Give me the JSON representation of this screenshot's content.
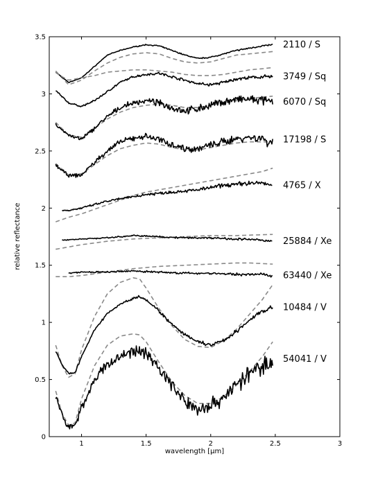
{
  "chart_data": {
    "type": "line",
    "title": "",
    "xlabel": "wavelength [μm]",
    "ylabel": "relative reflectance",
    "xlim": [
      0.75,
      3.0
    ],
    "ylim": [
      0,
      3.5
    ],
    "xticks": [
      1,
      1.5,
      2,
      2.5,
      3
    ],
    "xtick_labels": [
      "1",
      "1.5",
      "2",
      "2.5",
      "3"
    ],
    "yticks": [
      0,
      0.5,
      1,
      1.5,
      2,
      2.5,
      3,
      3.5
    ],
    "ytick_labels": [
      "0",
      "0.5",
      "1",
      "1.5",
      "2",
      "2.5",
      "3",
      "3.5"
    ],
    "grid": false,
    "line_styles": {
      "measured": {
        "color": "#000000",
        "dash": "solid"
      },
      "model": {
        "color": "#888888",
        "dash": "dashed"
      }
    },
    "series": [
      {
        "label": "2110 / S",
        "measured": [
          [
            0.8,
            3.19
          ],
          [
            0.9,
            3.1
          ],
          [
            1.0,
            3.14
          ],
          [
            1.1,
            3.24
          ],
          [
            1.2,
            3.34
          ],
          [
            1.3,
            3.38
          ],
          [
            1.4,
            3.41
          ],
          [
            1.5,
            3.43
          ],
          [
            1.6,
            3.42
          ],
          [
            1.7,
            3.38
          ],
          [
            1.8,
            3.34
          ],
          [
            1.9,
            3.31
          ],
          [
            2.0,
            3.32
          ],
          [
            2.1,
            3.35
          ],
          [
            2.2,
            3.38
          ],
          [
            2.3,
            3.4
          ],
          [
            2.4,
            3.42
          ],
          [
            2.48,
            3.43
          ]
        ],
        "model": [
          [
            0.8,
            3.2
          ],
          [
            0.9,
            3.08
          ],
          [
            1.0,
            3.12
          ],
          [
            1.1,
            3.2
          ],
          [
            1.2,
            3.27
          ],
          [
            1.3,
            3.32
          ],
          [
            1.4,
            3.35
          ],
          [
            1.5,
            3.36
          ],
          [
            1.6,
            3.35
          ],
          [
            1.7,
            3.31
          ],
          [
            1.8,
            3.28
          ],
          [
            1.9,
            3.27
          ],
          [
            2.0,
            3.28
          ],
          [
            2.1,
            3.31
          ],
          [
            2.2,
            3.34
          ],
          [
            2.3,
            3.35
          ],
          [
            2.48,
            3.37
          ]
        ],
        "noise": 0.005
      },
      {
        "label": "3749 / Sq",
        "measured": [
          [
            0.8,
            3.03
          ],
          [
            0.9,
            2.92
          ],
          [
            1.0,
            2.89
          ],
          [
            1.1,
            2.94
          ],
          [
            1.2,
            3.02
          ],
          [
            1.3,
            3.1
          ],
          [
            1.4,
            3.15
          ],
          [
            1.5,
            3.17
          ],
          [
            1.6,
            3.18
          ],
          [
            1.7,
            3.15
          ],
          [
            1.8,
            3.12
          ],
          [
            1.9,
            3.09
          ],
          [
            2.0,
            3.08
          ],
          [
            2.1,
            3.1
          ],
          [
            2.2,
            3.13
          ],
          [
            2.3,
            3.14
          ],
          [
            2.4,
            3.15
          ],
          [
            2.48,
            3.15
          ]
        ],
        "model": [
          [
            0.8,
            3.19
          ],
          [
            0.85,
            3.15
          ],
          [
            0.9,
            3.12
          ],
          [
            1.0,
            3.14
          ],
          [
            1.1,
            3.16
          ],
          [
            1.2,
            3.19
          ],
          [
            1.3,
            3.2
          ],
          [
            1.4,
            3.21
          ],
          [
            1.5,
            3.21
          ],
          [
            1.6,
            3.2
          ],
          [
            1.7,
            3.19
          ],
          [
            1.8,
            3.17
          ],
          [
            1.9,
            3.16
          ],
          [
            2.0,
            3.16
          ],
          [
            2.1,
            3.17
          ],
          [
            2.2,
            3.19
          ],
          [
            2.3,
            3.21
          ],
          [
            2.4,
            3.22
          ],
          [
            2.48,
            3.23
          ]
        ],
        "noise": 0.012
      },
      {
        "label": "6070 / Sq",
        "measured": [
          [
            0.8,
            2.73
          ],
          [
            0.9,
            2.64
          ],
          [
            1.0,
            2.6
          ],
          [
            1.1,
            2.7
          ],
          [
            1.2,
            2.8
          ],
          [
            1.3,
            2.88
          ],
          [
            1.4,
            2.92
          ],
          [
            1.5,
            2.94
          ],
          [
            1.6,
            2.92
          ],
          [
            1.7,
            2.88
          ],
          [
            1.8,
            2.85
          ],
          [
            1.9,
            2.87
          ],
          [
            2.0,
            2.9
          ],
          [
            2.1,
            2.93
          ],
          [
            2.2,
            2.95
          ],
          [
            2.3,
            2.95
          ],
          [
            2.4,
            2.94
          ],
          [
            2.48,
            2.93
          ]
        ],
        "model": [
          [
            0.8,
            2.75
          ],
          [
            0.9,
            2.64
          ],
          [
            1.0,
            2.62
          ],
          [
            1.1,
            2.7
          ],
          [
            1.2,
            2.78
          ],
          [
            1.3,
            2.84
          ],
          [
            1.4,
            2.88
          ],
          [
            1.5,
            2.9
          ],
          [
            1.6,
            2.91
          ],
          [
            1.7,
            2.9
          ],
          [
            1.8,
            2.88
          ],
          [
            1.9,
            2.88
          ],
          [
            2.0,
            2.9
          ],
          [
            2.1,
            2.92
          ],
          [
            2.2,
            2.94
          ],
          [
            2.3,
            2.96
          ],
          [
            2.48,
            2.98
          ]
        ],
        "noise": 0.03
      },
      {
        "label": "17198 / S",
        "measured": [
          [
            0.8,
            2.38
          ],
          [
            0.9,
            2.28
          ],
          [
            1.0,
            2.29
          ],
          [
            1.1,
            2.4
          ],
          [
            1.2,
            2.5
          ],
          [
            1.3,
            2.58
          ],
          [
            1.4,
            2.61
          ],
          [
            1.5,
            2.63
          ],
          [
            1.6,
            2.6
          ],
          [
            1.7,
            2.56
          ],
          [
            1.8,
            2.52
          ],
          [
            1.9,
            2.52
          ],
          [
            2.0,
            2.55
          ],
          [
            2.1,
            2.58
          ],
          [
            2.2,
            2.61
          ],
          [
            2.3,
            2.62
          ],
          [
            2.4,
            2.61
          ],
          [
            2.45,
            2.57
          ],
          [
            2.48,
            2.6
          ]
        ],
        "model": [
          [
            0.8,
            2.39
          ],
          [
            0.9,
            2.29
          ],
          [
            1.0,
            2.3
          ],
          [
            1.1,
            2.38
          ],
          [
            1.2,
            2.46
          ],
          [
            1.3,
            2.52
          ],
          [
            1.4,
            2.55
          ],
          [
            1.5,
            2.57
          ],
          [
            1.6,
            2.56
          ],
          [
            1.7,
            2.53
          ],
          [
            1.8,
            2.51
          ],
          [
            1.9,
            2.51
          ],
          [
            2.0,
            2.53
          ],
          [
            2.1,
            2.55
          ],
          [
            2.2,
            2.57
          ],
          [
            2.3,
            2.58
          ],
          [
            2.48,
            2.58
          ]
        ],
        "noise": 0.03
      },
      {
        "label": "4765 / X",
        "measured": [
          [
            0.85,
            1.98
          ],
          [
            0.9,
            1.98
          ],
          [
            1.0,
            2.0
          ],
          [
            1.1,
            2.03
          ],
          [
            1.2,
            2.06
          ],
          [
            1.3,
            2.08
          ],
          [
            1.4,
            2.1
          ],
          [
            1.5,
            2.12
          ],
          [
            1.6,
            2.13
          ],
          [
            1.7,
            2.14
          ],
          [
            1.8,
            2.15
          ],
          [
            1.9,
            2.16
          ],
          [
            2.0,
            2.18
          ],
          [
            2.1,
            2.2
          ],
          [
            2.2,
            2.21
          ],
          [
            2.3,
            2.22
          ],
          [
            2.4,
            2.22
          ],
          [
            2.48,
            2.2
          ]
        ],
        "model": [
          [
            0.8,
            1.88
          ],
          [
            0.9,
            1.92
          ],
          [
            1.0,
            1.95
          ],
          [
            1.1,
            1.99
          ],
          [
            1.2,
            2.03
          ],
          [
            1.3,
            2.07
          ],
          [
            1.4,
            2.11
          ],
          [
            1.5,
            2.14
          ],
          [
            1.6,
            2.16
          ],
          [
            1.7,
            2.18
          ],
          [
            1.8,
            2.2
          ],
          [
            1.9,
            2.22
          ],
          [
            2.0,
            2.24
          ],
          [
            2.1,
            2.26
          ],
          [
            2.2,
            2.28
          ],
          [
            2.3,
            2.3
          ],
          [
            2.4,
            2.32
          ],
          [
            2.48,
            2.35
          ]
        ],
        "noise": 0.015
      },
      {
        "label": "25884 / Xe",
        "measured": [
          [
            0.85,
            1.72
          ],
          [
            1.0,
            1.73
          ],
          [
            1.2,
            1.74
          ],
          [
            1.4,
            1.76
          ],
          [
            1.6,
            1.75
          ],
          [
            1.8,
            1.74
          ],
          [
            2.0,
            1.74
          ],
          [
            2.2,
            1.73
          ],
          [
            2.4,
            1.72
          ],
          [
            2.48,
            1.71
          ]
        ],
        "model": [
          [
            0.8,
            1.64
          ],
          [
            0.9,
            1.66
          ],
          [
            1.0,
            1.68
          ],
          [
            1.2,
            1.71
          ],
          [
            1.4,
            1.73
          ],
          [
            1.6,
            1.74
          ],
          [
            1.8,
            1.75
          ],
          [
            2.0,
            1.76
          ],
          [
            2.2,
            1.76
          ],
          [
            2.48,
            1.77
          ]
        ],
        "noise": 0.008
      },
      {
        "label": "63440 / Xe",
        "measured": [
          [
            0.9,
            1.43
          ],
          [
            1.0,
            1.44
          ],
          [
            1.2,
            1.44
          ],
          [
            1.4,
            1.45
          ],
          [
            1.6,
            1.44
          ],
          [
            1.8,
            1.43
          ],
          [
            2.0,
            1.43
          ],
          [
            2.2,
            1.42
          ],
          [
            2.4,
            1.42
          ],
          [
            2.48,
            1.41
          ]
        ],
        "model": [
          [
            0.8,
            1.4
          ],
          [
            0.9,
            1.4
          ],
          [
            1.0,
            1.41
          ],
          [
            1.2,
            1.44
          ],
          [
            1.4,
            1.47
          ],
          [
            1.6,
            1.49
          ],
          [
            1.8,
            1.5
          ],
          [
            2.0,
            1.51
          ],
          [
            2.2,
            1.52
          ],
          [
            2.3,
            1.52
          ],
          [
            2.48,
            1.51
          ]
        ],
        "noise": 0.01
      },
      {
        "label": "10484 / V",
        "measured": [
          [
            0.8,
            0.75
          ],
          [
            0.85,
            0.63
          ],
          [
            0.9,
            0.55
          ],
          [
            0.95,
            0.56
          ],
          [
            1.0,
            0.7
          ],
          [
            1.1,
            0.93
          ],
          [
            1.2,
            1.08
          ],
          [
            1.3,
            1.16
          ],
          [
            1.4,
            1.21
          ],
          [
            1.45,
            1.23
          ],
          [
            1.5,
            1.2
          ],
          [
            1.6,
            1.1
          ],
          [
            1.7,
            0.98
          ],
          [
            1.8,
            0.89
          ],
          [
            1.9,
            0.83
          ],
          [
            2.0,
            0.8
          ],
          [
            2.1,
            0.84
          ],
          [
            2.2,
            0.92
          ],
          [
            2.3,
            1.02
          ],
          [
            2.4,
            1.1
          ],
          [
            2.48,
            1.13
          ]
        ],
        "model": [
          [
            0.8,
            0.8
          ],
          [
            0.85,
            0.62
          ],
          [
            0.9,
            0.52
          ],
          [
            0.95,
            0.55
          ],
          [
            1.0,
            0.76
          ],
          [
            1.1,
            1.05
          ],
          [
            1.2,
            1.25
          ],
          [
            1.3,
            1.35
          ],
          [
            1.4,
            1.39
          ],
          [
            1.45,
            1.38
          ],
          [
            1.5,
            1.3
          ],
          [
            1.6,
            1.12
          ],
          [
            1.7,
            0.97
          ],
          [
            1.8,
            0.85
          ],
          [
            1.9,
            0.79
          ],
          [
            2.0,
            0.78
          ],
          [
            2.1,
            0.84
          ],
          [
            2.2,
            0.94
          ],
          [
            2.3,
            1.07
          ],
          [
            2.4,
            1.2
          ],
          [
            2.48,
            1.33
          ]
        ],
        "noise": 0.015
      },
      {
        "label": "54041 / V",
        "measured": [
          [
            0.8,
            0.35
          ],
          [
            0.85,
            0.18
          ],
          [
            0.9,
            0.08
          ],
          [
            0.95,
            0.1
          ],
          [
            1.0,
            0.25
          ],
          [
            1.1,
            0.5
          ],
          [
            1.2,
            0.63
          ],
          [
            1.3,
            0.7
          ],
          [
            1.4,
            0.75
          ],
          [
            1.5,
            0.74
          ],
          [
            1.6,
            0.6
          ],
          [
            1.7,
            0.45
          ],
          [
            1.8,
            0.3
          ],
          [
            1.9,
            0.25
          ],
          [
            2.0,
            0.27
          ],
          [
            2.1,
            0.35
          ],
          [
            2.2,
            0.45
          ],
          [
            2.3,
            0.55
          ],
          [
            2.4,
            0.62
          ],
          [
            2.48,
            0.68
          ]
        ],
        "model": [
          [
            0.8,
            0.4
          ],
          [
            0.85,
            0.2
          ],
          [
            0.9,
            0.1
          ],
          [
            0.95,
            0.12
          ],
          [
            1.0,
            0.33
          ],
          [
            1.1,
            0.62
          ],
          [
            1.2,
            0.8
          ],
          [
            1.3,
            0.88
          ],
          [
            1.4,
            0.9
          ],
          [
            1.45,
            0.89
          ],
          [
            1.5,
            0.83
          ],
          [
            1.6,
            0.65
          ],
          [
            1.7,
            0.48
          ],
          [
            1.8,
            0.36
          ],
          [
            1.9,
            0.29
          ],
          [
            2.0,
            0.29
          ],
          [
            2.1,
            0.35
          ],
          [
            2.2,
            0.45
          ],
          [
            2.3,
            0.57
          ],
          [
            2.4,
            0.7
          ],
          [
            2.48,
            0.83
          ]
        ],
        "noise": 0.06
      }
    ]
  }
}
